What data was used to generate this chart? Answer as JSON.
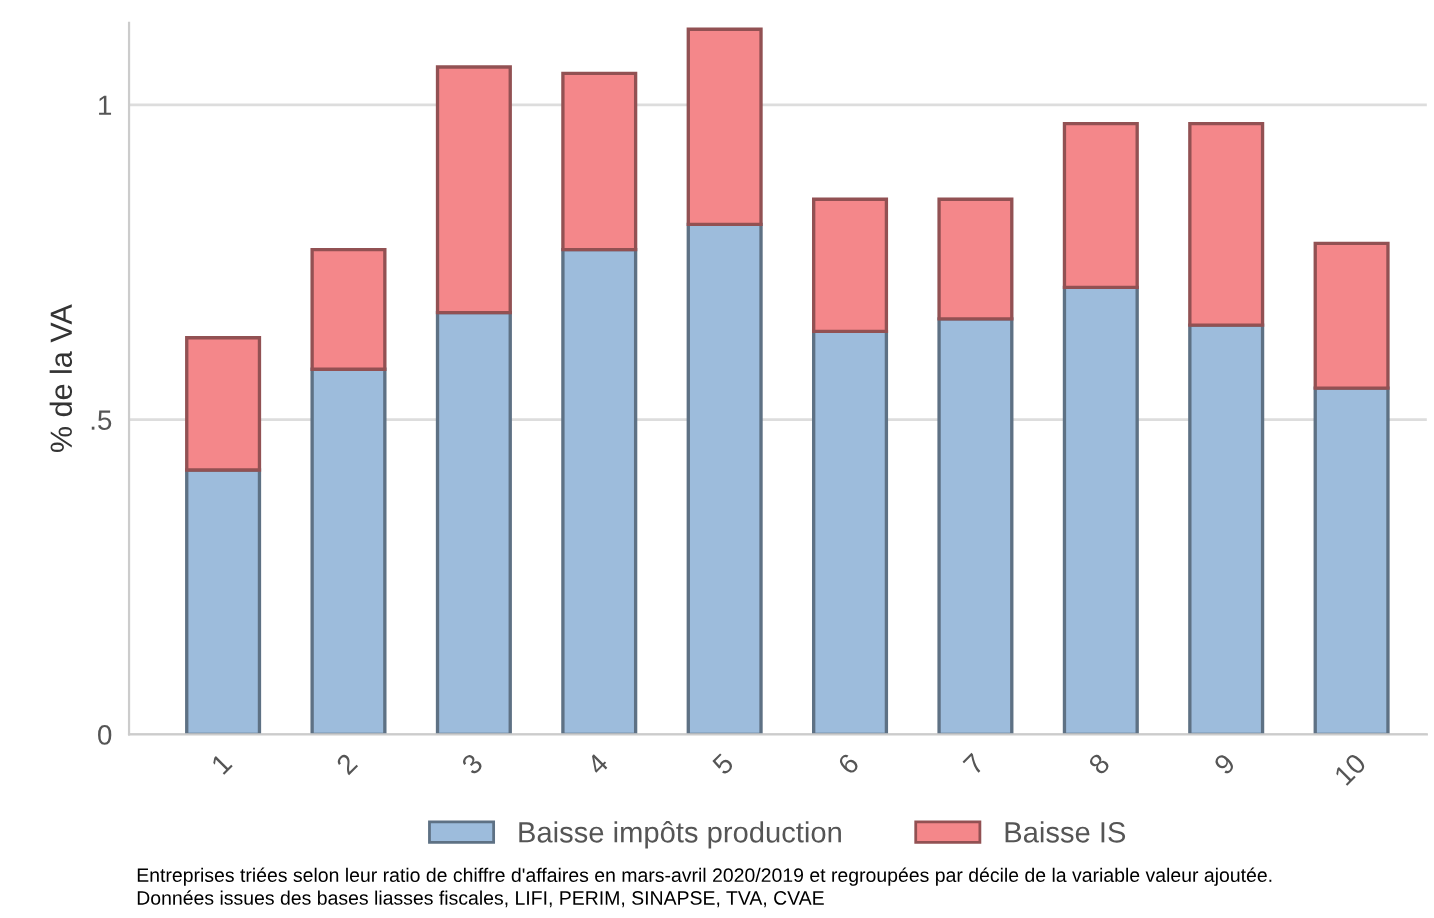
{
  "chart_data": {
    "type": "bar",
    "stacked": true,
    "ylabel": "% de la VA",
    "categories": [
      "1",
      "2",
      "3",
      "4",
      "5",
      "6",
      "7",
      "8",
      "9",
      "10"
    ],
    "series": [
      {
        "name": "Baisse impôts production",
        "color": "#9dbcdc",
        "values": [
          0.42,
          0.58,
          0.67,
          0.77,
          0.81,
          0.64,
          0.66,
          0.71,
          0.65,
          0.55
        ]
      },
      {
        "name": "Baisse IS",
        "color": "#f4878a",
        "values": [
          0.21,
          0.19,
          0.39,
          0.28,
          0.31,
          0.21,
          0.19,
          0.26,
          0.32,
          0.23
        ]
      }
    ],
    "ylim": [
      0,
      1.13
    ],
    "yticks": [
      {
        "value": 0,
        "label": "0"
      },
      {
        "value": 0.5,
        "label": ".5"
      },
      {
        "value": 1,
        "label": "1"
      }
    ],
    "grid": "y",
    "legend": "bottom",
    "annotations": [
      "Entreprises triées selon leur ratio de chiffre d'affaires en mars-avril 2020/2019 et regroupées par décile de la variable valeur ajoutée.",
      "Données issues des bases liasses fiscales, LIFI, PERIM, SINAPSE, TVA, CVAE"
    ]
  }
}
